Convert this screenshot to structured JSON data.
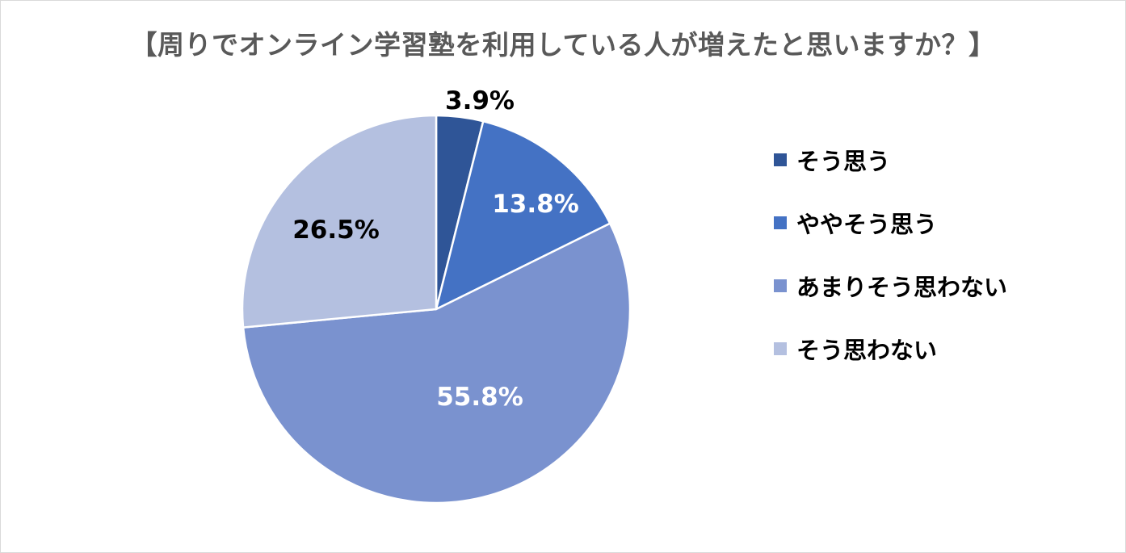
{
  "chart_data": {
    "type": "pie",
    "title": "【周りでオンライン学習塾を利用している人が増えたと思いますか？】",
    "categories": [
      "そう思う",
      "ややそう思う",
      "あまりそう思わない",
      "そう思わない"
    ],
    "values": [
      3.9,
      13.8,
      55.8,
      26.5
    ],
    "data_labels": [
      "3.9%",
      "13.8%",
      "55.8%",
      "26.5%"
    ],
    "colors": [
      "#2f5597",
      "#4472c4",
      "#7a92cf",
      "#b4c0e0"
    ],
    "label_colors": [
      "#000000",
      "#ffffff",
      "#ffffff",
      "#000000"
    ],
    "legend": "right",
    "start_angle": "12 o'clock",
    "direction": "clockwise"
  }
}
